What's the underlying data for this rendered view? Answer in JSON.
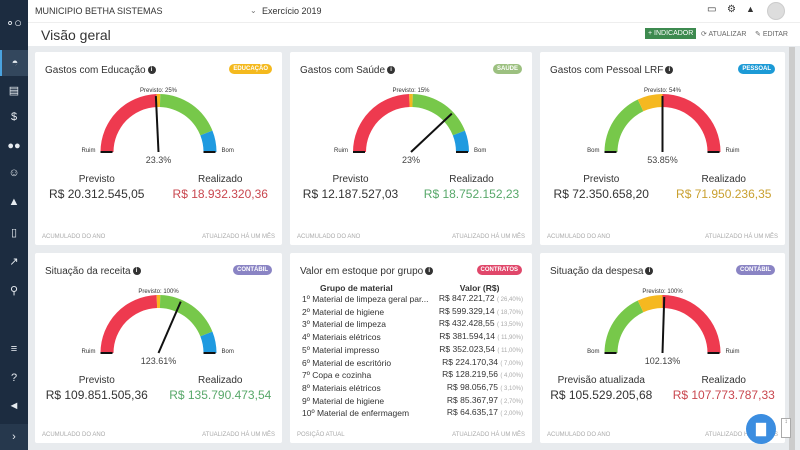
{
  "header": {
    "org": "MUNICIPIO BETHA SISTEMAS",
    "year": "Exercício 2019",
    "page_title": "Visão geral",
    "add_indicator": "+ INDICADOR",
    "refresh": "ATUALIZAR",
    "edit": "EDITAR"
  },
  "sidebar": {
    "items": [
      "logo",
      "dashboard",
      "calculator",
      "money",
      "people",
      "user-badge",
      "graduation",
      "document",
      "chart",
      "search",
      "database",
      "help",
      "megaphone",
      "expand"
    ]
  },
  "colors": {
    "red": "#ee3a4f",
    "green": "#77c84a",
    "blue": "#1f9ae0",
    "orange": "#f5b820",
    "sidebar": "#1c2c40"
  },
  "cards": [
    {
      "title": "Gastos com Educação",
      "badge": "EDUCAÇÃO",
      "badge_color": "#f4b91e",
      "forecast_label": "Previsto: 25%",
      "value_label": "23.3%",
      "left_label": "Ruim",
      "right_label": "Bom",
      "needle": 0.485,
      "segments": [
        [
          0,
          0.49,
          "#ee3a4f"
        ],
        [
          0.49,
          0.51,
          "#f5b820"
        ],
        [
          0.51,
          0.88,
          "#77c84a"
        ],
        [
          0.88,
          1,
          "#1f9ae0"
        ]
      ],
      "prev_label": "Previsto",
      "prev_value": "R$ 20.312.545,05",
      "real_label": "Realizado",
      "real_value": "R$ 18.932.320,36",
      "real_color": "#c9474f",
      "foot_left": "ACUMULADO DO ANO",
      "foot_right": "ATUALIZADO HÁ UM MÊS"
    },
    {
      "title": "Gastos com Saúde",
      "badge": "SAÚDE",
      "badge_color": "#9cc080",
      "forecast_label": "Previsto: 15%",
      "value_label": "23%",
      "left_label": "Ruim",
      "right_label": "Bom",
      "needle": 0.76,
      "segments": [
        [
          0,
          0.49,
          "#ee3a4f"
        ],
        [
          0.49,
          0.51,
          "#f5b820"
        ],
        [
          0.51,
          0.88,
          "#77c84a"
        ],
        [
          0.88,
          1,
          "#1f9ae0"
        ]
      ],
      "prev_label": "Previsto",
      "prev_value": "R$ 12.187.527,03",
      "real_label": "Realizado",
      "real_value": "R$ 18.752.152,23",
      "real_color": "#58a86a",
      "foot_left": "ACUMULADO DO ANO",
      "foot_right": "ATUALIZADO HÁ UM MÊS"
    },
    {
      "title": "Gastos com Pessoal LRF",
      "badge": "PESSOAL",
      "badge_color": "#1c9ad6",
      "forecast_label": "Previsto: 54%",
      "value_label": "53.85%",
      "left_label": "Bom",
      "right_label": "Ruim",
      "needle": 0.5,
      "segments": [
        [
          0,
          0.36,
          "#77c84a"
        ],
        [
          0.36,
          0.5,
          "#f5b820"
        ],
        [
          0.5,
          1,
          "#ee3a4f"
        ]
      ],
      "prev_label": "Previsto",
      "prev_value": "R$ 72.350.658,20",
      "real_label": "Realizado",
      "real_value": "R$ 71.950.236,35",
      "real_color": "#c9a030",
      "foot_left": "ACUMULADO DO ANO",
      "foot_right": "ATUALIZADO HÁ UM MÊS"
    },
    {
      "title": "Situação da receita",
      "badge": "CONTÁBIL",
      "badge_color": "#8a84c4",
      "forecast_label": "Previsto: 100%",
      "value_label": "123.61%",
      "left_label": "Ruim",
      "right_label": "Bom",
      "needle": 0.63,
      "segments": [
        [
          0,
          0.49,
          "#ee3a4f"
        ],
        [
          0.49,
          0.51,
          "#f5b820"
        ],
        [
          0.51,
          0.88,
          "#77c84a"
        ],
        [
          0.88,
          1,
          "#1f9ae0"
        ]
      ],
      "prev_label": "Previsto",
      "prev_value": "R$ 109.851.505,36",
      "real_label": "Realizado",
      "real_value": "R$ 135.790.473,54",
      "real_color": "#58a86a",
      "foot_left": "ACUMULADO DO ANO",
      "foot_right": "ATUALIZADO HÁ UM MÊS"
    },
    {
      "title": "Situação da despesa",
      "badge": "CONTÁBIL",
      "badge_color": "#8a84c4",
      "forecast_label": "Previsto: 100%",
      "value_label": "102.13%",
      "left_label": "Bom",
      "right_label": "Ruim",
      "needle": 0.51,
      "segments": [
        [
          0,
          0.36,
          "#77c84a"
        ],
        [
          0.36,
          0.5,
          "#f5b820"
        ],
        [
          0.5,
          1,
          "#ee3a4f"
        ]
      ],
      "prev_label": "Previsão atualizada",
      "prev_value": "R$ 105.529.205,68",
      "real_label": "Realizado",
      "real_value": "R$ 107.773.787,33",
      "real_color": "#c9474f",
      "foot_left": "ACUMULADO DO ANO",
      "foot_right": "ATUALIZADO HÁ UM MÊS"
    }
  ],
  "stock": {
    "title": "Valor em estoque por grupo",
    "badge": "CONTRATOS",
    "badge_color": "#e0476a",
    "col_group": "Grupo de material",
    "col_value": "Valor (R$)",
    "foot_left": "POSIÇÃO ATUAL",
    "foot_right": "ATUALIZADO HÁ UM MÊS",
    "rows": [
      {
        "rank": "1º",
        "name": "Material de limpeza geral par...",
        "value": "R$ 847.221,72",
        "pct": "( 26,40%)"
      },
      {
        "rank": "2º",
        "name": "Material de higiene",
        "value": "R$ 599.329,14",
        "pct": "( 18,70%)"
      },
      {
        "rank": "3º",
        "name": "Material de limpeza",
        "value": "R$ 432.428,55",
        "pct": "( 13,50%)"
      },
      {
        "rank": "4º",
        "name": "Materiais elétricos",
        "value": "R$ 381.594,14",
        "pct": "( 11,90%)"
      },
      {
        "rank": "5º",
        "name": "Material impresso",
        "value": "R$ 352.023,54",
        "pct": "( 11,00%)"
      },
      {
        "rank": "6º",
        "name": "Material de escritório",
        "value": "R$ 224.170,34",
        "pct": "( 7,00%)"
      },
      {
        "rank": "7º",
        "name": "Copa e cozinha",
        "value": "R$ 128.219,56",
        "pct": "( 4,00%)"
      },
      {
        "rank": "8º",
        "name": "Materiais elétricos",
        "value": "R$ 98.056,75",
        "pct": "( 3,10%)"
      },
      {
        "rank": "9º",
        "name": "Material de higiene",
        "value": "R$ 85.367,97",
        "pct": "( 2,70%)"
      },
      {
        "rank": "10º",
        "name": "Material de enfermagem",
        "value": "R$ 64.635,17",
        "pct": "( 2,00%)"
      }
    ]
  }
}
